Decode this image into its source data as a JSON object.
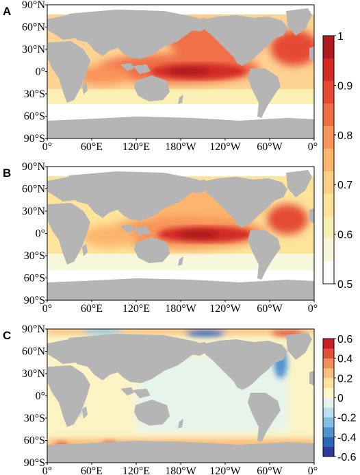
{
  "panels": [
    {
      "letter": "A",
      "kind": "field-a"
    },
    {
      "letter": "B",
      "kind": "field-b"
    },
    {
      "letter": "C",
      "kind": "difference"
    }
  ],
  "lat_labels": [
    "90°N",
    "60°N",
    "30°N",
    "0°",
    "30°S",
    "60°S",
    "90°S"
  ],
  "lon_labels": [
    "0°",
    "60°E",
    "120°E",
    "180°W",
    "120°W",
    "60°W",
    "0°"
  ],
  "colorbar_top": {
    "tick_labels": [
      "1",
      "0.9",
      "0.8",
      "0.7",
      "0.6",
      "0.5"
    ],
    "colors": [
      "#ffffff",
      "#f7f7dc",
      "#fbf0b4",
      "#fde49a",
      "#fdcf86",
      "#fcb56d",
      "#f8945a",
      "#f07046",
      "#e54a33",
      "#d32a26",
      "#ad1a1f"
    ]
  },
  "colorbar_bottom": {
    "tick_labels": [
      "0.6",
      "0.4",
      "0.2",
      "0",
      "-0.2",
      "-0.4",
      "-0.6"
    ],
    "colors": [
      "#2b3a9b",
      "#2f66b8",
      "#5595cf",
      "#86bde2",
      "#bde0f0",
      "#e6f4ec",
      "#fcf8cc",
      "#fde2a0",
      "#fbbf7c",
      "#f38f5a",
      "#e2523a",
      "#c81e26"
    ]
  },
  "colors": {
    "land": "#b5b5b5",
    "ocean_base_a": "#fdd392",
    "ocean_base_c": "#fbf3c4"
  }
}
